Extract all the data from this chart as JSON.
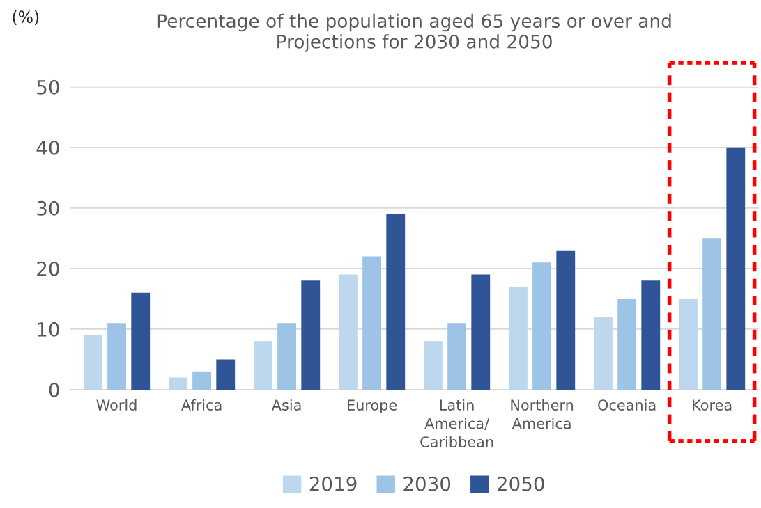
{
  "chart_data": {
    "type": "bar",
    "title": "Percentage of the population aged 65 years or over and\nProjections for 2030 and 2050",
    "ylabel": "(%)",
    "categories": [
      "World",
      "Africa",
      "Asia",
      "Europe",
      "Latin\nAmerica/\nCaribbean",
      "Northern\nAmerica",
      "Oceania",
      "Korea"
    ],
    "series": [
      {
        "name": "2019",
        "color": "#bdd7ee",
        "values": [
          9,
          2,
          8,
          19,
          8,
          17,
          12,
          15
        ]
      },
      {
        "name": "2030",
        "color": "#9dc3e6",
        "values": [
          11,
          3,
          11,
          22,
          11,
          21,
          15,
          25
        ]
      },
      {
        "name": "2050",
        "color": "#2f5597",
        "values": [
          16,
          5,
          18,
          29,
          19,
          23,
          18,
          40
        ]
      }
    ],
    "ylim": [
      0,
      50
    ],
    "yticks": [
      0,
      10,
      20,
      30,
      40,
      50
    ],
    "grid": "y",
    "legend": "bottom"
  }
}
